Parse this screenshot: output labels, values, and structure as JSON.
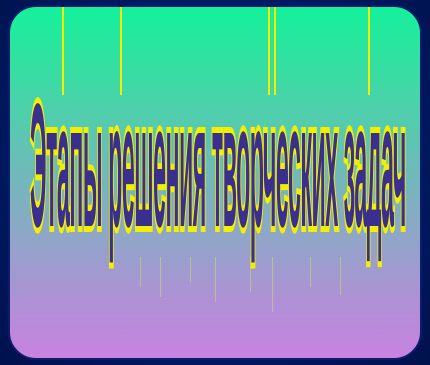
{
  "title": "Этапы решения творческих задач",
  "colors": {
    "page_background": "#001c6b",
    "panel_top": "#14f19a",
    "panel_bottom": "#c882e0",
    "text_fill": "#3a2f8c",
    "text_outline": "#f2f000",
    "stripes": "#f2f000"
  }
}
